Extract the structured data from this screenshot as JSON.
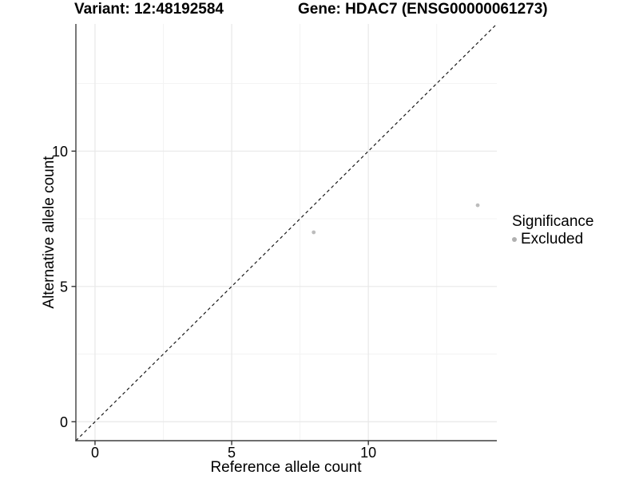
{
  "header": {
    "variant_title": "Variant: 12:48192584",
    "gene_title": "Gene: HDAC7 (ENSG00000061273)"
  },
  "chart_data": {
    "type": "scatter",
    "xlabel": "Reference allele count",
    "ylabel": "Alternative allele count",
    "xlim": [
      -0.7,
      14.7
    ],
    "ylim": [
      -0.7,
      14.7
    ],
    "x_ticks": [
      0,
      5,
      10
    ],
    "y_ticks": [
      0,
      5,
      10
    ],
    "x_minor": [
      2.5,
      7.5,
      12.5
    ],
    "y_minor": [
      2.5,
      7.5,
      12.5
    ],
    "grid": true,
    "diagonal_line": {
      "style": "dashed",
      "from": [
        -0.7,
        -0.7
      ],
      "to": [
        14.7,
        14.7
      ]
    },
    "series": [
      {
        "name": "Excluded",
        "color": "#bcbcbc",
        "points": [
          {
            "x": 8,
            "y": 7
          },
          {
            "x": 14,
            "y": 8
          }
        ]
      }
    ],
    "legend": {
      "title": "Significance",
      "position": "right",
      "items": [
        {
          "label": "Excluded",
          "marker_color": "#b0b0b0"
        }
      ]
    }
  },
  "colors": {
    "background": "#ffffff",
    "axis_line": "#3f3f3f",
    "tick_mark": "#333333",
    "grid_major": "#e8e8e8",
    "grid_minor": "#f3f3f3",
    "dashed_line": "#1a1a1a",
    "text": "#000000"
  }
}
